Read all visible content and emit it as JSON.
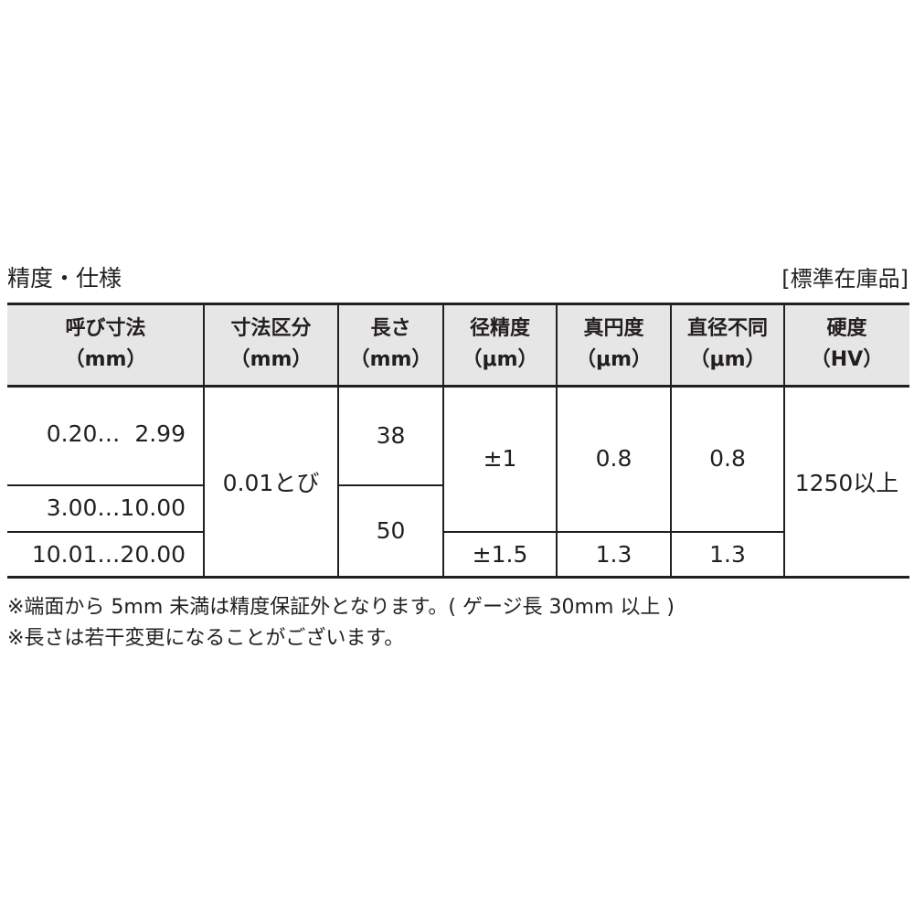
{
  "title": "精度・仕様",
  "stock_label": "[標準在庫品]",
  "headers": [
    {
      "line1": "呼び寸法",
      "line2": "（mm）"
    },
    {
      "line1": "寸法区分",
      "line2": "（mm）"
    },
    {
      "line1": "長さ",
      "line2": "（mm）"
    },
    {
      "line1": "径精度",
      "line2": "（μm）"
    },
    {
      "line1": "真円度",
      "line2": "（μm）"
    },
    {
      "line1": "直径不同",
      "line2": "（μm）"
    },
    {
      "line1": "硬度",
      "line2": "（HV）"
    }
  ],
  "body": {
    "nominal": [
      "0.20…  2.99",
      "3.00…10.00",
      "10.01…20.00"
    ],
    "increment": "0.01とび",
    "length": [
      "38",
      "50"
    ],
    "diameter_accuracy": [
      "±1",
      "±1.5"
    ],
    "roundness": [
      "0.8",
      "1.3"
    ],
    "diameter_variation": [
      "0.8",
      "1.3"
    ],
    "hardness": "1250以上"
  },
  "notes": [
    "※端面から 5mm 未満は精度保証外となります。( ゲージ長 30mm 以上 )",
    "※長さは若干変更になることがございます。"
  ]
}
